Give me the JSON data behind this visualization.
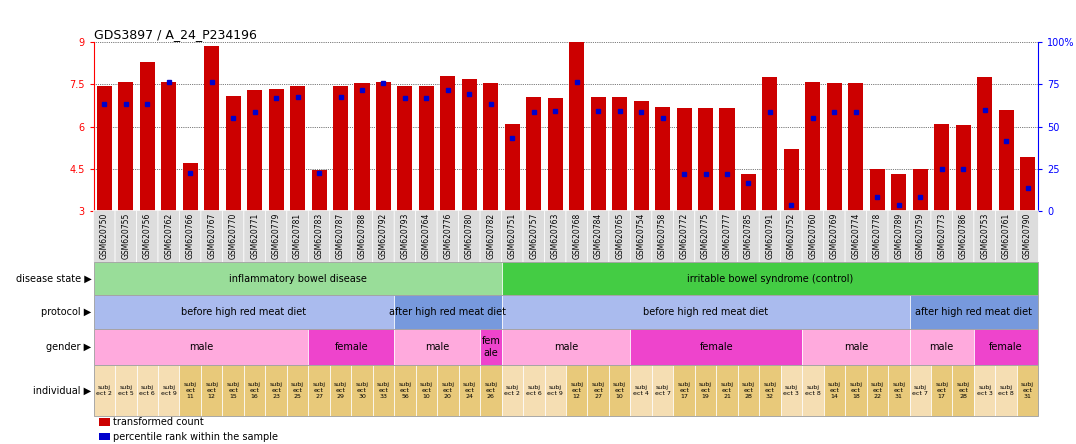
{
  "title": "GDS3897 / A_24_P234196",
  "samples": [
    "GSM620750",
    "GSM620755",
    "GSM620756",
    "GSM620762",
    "GSM620766",
    "GSM620767",
    "GSM620770",
    "GSM620771",
    "GSM620779",
    "GSM620781",
    "GSM620783",
    "GSM620787",
    "GSM620788",
    "GSM620792",
    "GSM620793",
    "GSM620764",
    "GSM620776",
    "GSM620780",
    "GSM620782",
    "GSM620751",
    "GSM620757",
    "GSM620763",
    "GSM620768",
    "GSM620784",
    "GSM620765",
    "GSM620754",
    "GSM620758",
    "GSM620772",
    "GSM620775",
    "GSM620777",
    "GSM620785",
    "GSM620791",
    "GSM620752",
    "GSM620760",
    "GSM620769",
    "GSM620774",
    "GSM620778",
    "GSM620789",
    "GSM620759",
    "GSM620773",
    "GSM620786",
    "GSM620753",
    "GSM620761",
    "GSM620790"
  ],
  "bar_values": [
    7.45,
    7.6,
    8.3,
    7.6,
    4.7,
    8.85,
    7.1,
    7.3,
    7.35,
    7.45,
    4.45,
    7.45,
    7.55,
    7.6,
    7.45,
    7.45,
    7.8,
    7.7,
    7.55,
    6.1,
    7.05,
    7.0,
    9.05,
    7.05,
    7.05,
    6.9,
    6.7,
    6.65,
    6.65,
    6.65,
    4.3,
    7.75,
    5.2,
    7.6,
    7.55,
    7.55,
    4.5,
    4.3,
    4.5,
    6.1,
    6.05,
    7.75,
    6.6,
    4.9
  ],
  "percentile_values": [
    6.8,
    6.8,
    6.8,
    7.6,
    4.35,
    7.6,
    6.3,
    6.5,
    7.0,
    7.05,
    4.35,
    7.05,
    7.3,
    7.55,
    7.0,
    7.0,
    7.3,
    7.15,
    6.8,
    5.6,
    6.5,
    6.55,
    7.6,
    6.55,
    6.55,
    6.5,
    6.3,
    4.3,
    4.3,
    4.3,
    4.0,
    6.5,
    3.2,
    6.3,
    6.5,
    6.5,
    3.5,
    3.2,
    3.5,
    4.5,
    4.5,
    6.6,
    5.5,
    3.8
  ],
  "bar_color": "#CC0000",
  "percentile_color": "#0000CC",
  "ymin": 3.0,
  "ymax": 9.0,
  "yticks": [
    3.0,
    4.5,
    6.0,
    7.5,
    9.0
  ],
  "ytick_labels": [
    "3",
    "4.5",
    "6",
    "7.5",
    "9"
  ],
  "right_ytick_pcts": [
    0,
    25,
    50,
    75,
    100
  ],
  "right_ytick_labels": [
    "0",
    "25",
    "50",
    "75",
    "100%"
  ],
  "disease_state_groups": [
    {
      "label": "inflammatory bowel disease",
      "start": 0,
      "end": 19,
      "color": "#99DD99"
    },
    {
      "label": "irritable bowel syndrome (control)",
      "start": 19,
      "end": 44,
      "color": "#44CC44"
    }
  ],
  "protocol_groups": [
    {
      "label": "before high red meat diet",
      "start": 0,
      "end": 14,
      "color": "#AABBEE"
    },
    {
      "label": "after high red meat diet",
      "start": 14,
      "end": 19,
      "color": "#7799DD"
    },
    {
      "label": "before high red meat diet",
      "start": 19,
      "end": 38,
      "color": "#AABBEE"
    },
    {
      "label": "after high red meat diet",
      "start": 38,
      "end": 44,
      "color": "#7799DD"
    }
  ],
  "gender_groups": [
    {
      "label": "male",
      "start": 0,
      "end": 10,
      "color": "#FFAADD"
    },
    {
      "label": "female",
      "start": 10,
      "end": 14,
      "color": "#EE44CC"
    },
    {
      "label": "male",
      "start": 14,
      "end": 18,
      "color": "#FFAADD"
    },
    {
      "label": "fem\nale",
      "start": 18,
      "end": 19,
      "color": "#EE44CC"
    },
    {
      "label": "male",
      "start": 19,
      "end": 25,
      "color": "#FFAADD"
    },
    {
      "label": "female",
      "start": 25,
      "end": 33,
      "color": "#EE44CC"
    },
    {
      "label": "male",
      "start": 33,
      "end": 38,
      "color": "#FFAADD"
    },
    {
      "label": "male",
      "start": 38,
      "end": 41,
      "color": "#FFAADD"
    },
    {
      "label": "female",
      "start": 41,
      "end": 44,
      "color": "#EE44CC"
    }
  ],
  "individual_groups": [
    {
      "label": "subj\nect 2",
      "start": 0,
      "end": 1,
      "color": "#F5DEB3"
    },
    {
      "label": "subj\nect 5",
      "start": 1,
      "end": 2,
      "color": "#F5DEB3"
    },
    {
      "label": "subj\nect 6",
      "start": 2,
      "end": 3,
      "color": "#F5DEB3"
    },
    {
      "label": "subj\nect 9",
      "start": 3,
      "end": 4,
      "color": "#F5DEB3"
    },
    {
      "label": "subj\nect\n11",
      "start": 4,
      "end": 5,
      "color": "#E8C97A"
    },
    {
      "label": "subj\nect\n12",
      "start": 5,
      "end": 6,
      "color": "#E8C97A"
    },
    {
      "label": "subj\nect\n15",
      "start": 6,
      "end": 7,
      "color": "#E8C97A"
    },
    {
      "label": "subj\nect\n16",
      "start": 7,
      "end": 8,
      "color": "#E8C97A"
    },
    {
      "label": "subj\nect\n23",
      "start": 8,
      "end": 9,
      "color": "#E8C97A"
    },
    {
      "label": "subj\nect\n25",
      "start": 9,
      "end": 10,
      "color": "#E8C97A"
    },
    {
      "label": "subj\nect\n27",
      "start": 10,
      "end": 11,
      "color": "#E8C97A"
    },
    {
      "label": "subj\nect\n29",
      "start": 11,
      "end": 12,
      "color": "#E8C97A"
    },
    {
      "label": "subj\nect\n30",
      "start": 12,
      "end": 13,
      "color": "#E8C97A"
    },
    {
      "label": "subj\nect\n33",
      "start": 13,
      "end": 14,
      "color": "#E8C97A"
    },
    {
      "label": "subj\nect\n56",
      "start": 14,
      "end": 15,
      "color": "#E8C97A"
    },
    {
      "label": "subj\nect\n10",
      "start": 15,
      "end": 16,
      "color": "#E8C97A"
    },
    {
      "label": "subj\nect\n20",
      "start": 16,
      "end": 17,
      "color": "#E8C97A"
    },
    {
      "label": "subj\nect\n24",
      "start": 17,
      "end": 18,
      "color": "#E8C97A"
    },
    {
      "label": "subj\nect\n26",
      "start": 18,
      "end": 19,
      "color": "#E8C97A"
    },
    {
      "label": "subj\nect 2",
      "start": 19,
      "end": 20,
      "color": "#F5DEB3"
    },
    {
      "label": "subj\nect 6",
      "start": 20,
      "end": 21,
      "color": "#F5DEB3"
    },
    {
      "label": "subj\nect 9",
      "start": 21,
      "end": 22,
      "color": "#F5DEB3"
    },
    {
      "label": "subj\nect\n12",
      "start": 22,
      "end": 23,
      "color": "#E8C97A"
    },
    {
      "label": "subj\nect\n27",
      "start": 23,
      "end": 24,
      "color": "#E8C97A"
    },
    {
      "label": "subj\nect\n10",
      "start": 24,
      "end": 25,
      "color": "#E8C97A"
    },
    {
      "label": "subj\nect 4",
      "start": 25,
      "end": 26,
      "color": "#F5DEB3"
    },
    {
      "label": "subj\nect 7",
      "start": 26,
      "end": 27,
      "color": "#F5DEB3"
    },
    {
      "label": "subj\nect\n17",
      "start": 27,
      "end": 28,
      "color": "#E8C97A"
    },
    {
      "label": "subj\nect\n19",
      "start": 28,
      "end": 29,
      "color": "#E8C97A"
    },
    {
      "label": "subj\nect\n21",
      "start": 29,
      "end": 30,
      "color": "#E8C97A"
    },
    {
      "label": "subj\nect\n28",
      "start": 30,
      "end": 31,
      "color": "#E8C97A"
    },
    {
      "label": "subj\nect\n32",
      "start": 31,
      "end": 32,
      "color": "#E8C97A"
    },
    {
      "label": "subj\nect 3",
      "start": 32,
      "end": 33,
      "color": "#F5DEB3"
    },
    {
      "label": "subj\nect 8",
      "start": 33,
      "end": 34,
      "color": "#F5DEB3"
    },
    {
      "label": "subj\nect\n14",
      "start": 34,
      "end": 35,
      "color": "#E8C97A"
    },
    {
      "label": "subj\nect\n18",
      "start": 35,
      "end": 36,
      "color": "#E8C97A"
    },
    {
      "label": "subj\nect\n22",
      "start": 36,
      "end": 37,
      "color": "#E8C97A"
    },
    {
      "label": "subj\nect\n31",
      "start": 37,
      "end": 38,
      "color": "#E8C97A"
    },
    {
      "label": "subj\nect 7",
      "start": 38,
      "end": 39,
      "color": "#F5DEB3"
    },
    {
      "label": "subj\nect\n17",
      "start": 39,
      "end": 40,
      "color": "#E8C97A"
    },
    {
      "label": "subj\nect\n28",
      "start": 40,
      "end": 41,
      "color": "#E8C97A"
    },
    {
      "label": "subj\nect 3",
      "start": 41,
      "end": 42,
      "color": "#F5DEB3"
    },
    {
      "label": "subj\nect 8",
      "start": 42,
      "end": 43,
      "color": "#F5DEB3"
    },
    {
      "label": "subj\nect\n31",
      "start": 43,
      "end": 44,
      "color": "#E8C97A"
    }
  ],
  "legend_items": [
    {
      "label": "transformed count",
      "color": "#CC0000"
    },
    {
      "label": "percentile rank within the sample",
      "color": "#0000CC"
    }
  ],
  "xtick_bg": "#DDDDDD"
}
